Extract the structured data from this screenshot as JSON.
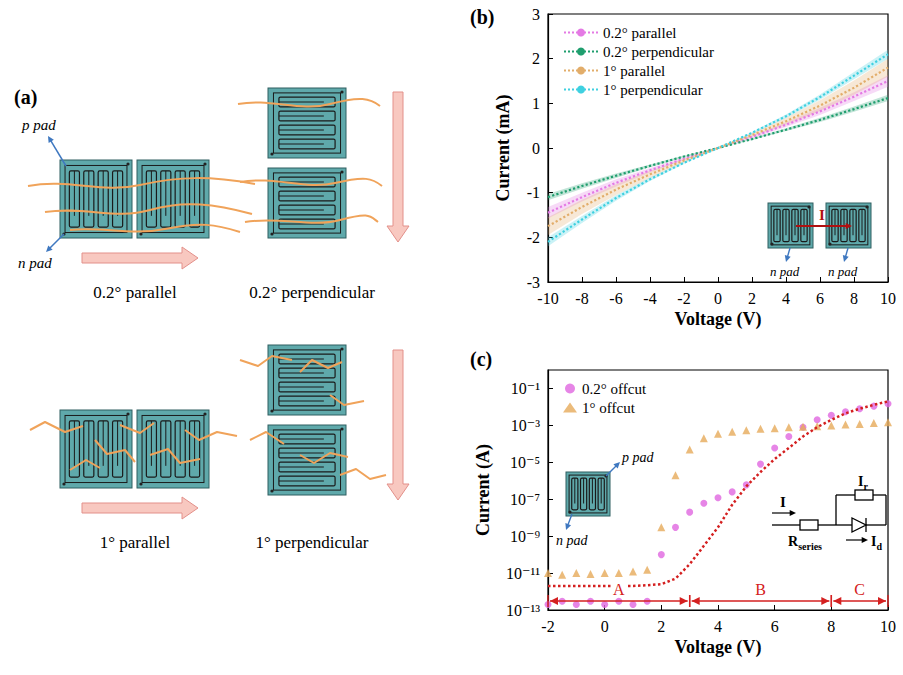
{
  "diagram": {
    "title": "(a)",
    "pad_labels": {
      "p": "p pad",
      "n": "n pad"
    },
    "captions": [
      "0.2° parallel",
      "0.2° perpendicular",
      "1° parallel",
      "1° perpendicular"
    ]
  },
  "chart_data": [
    {
      "type": "line",
      "title": "(b)",
      "x_label": "Voltage (V)",
      "y_label": "Current (mA)",
      "xlim": [
        -10,
        10
      ],
      "xticks": [
        -10,
        -8,
        -6,
        -4,
        -2,
        0,
        2,
        4,
        6,
        8,
        10
      ],
      "ylim": [
        -3,
        3
      ],
      "yticks": [
        -3,
        -2,
        -1,
        0,
        1,
        2,
        3
      ],
      "grid": false,
      "legend": "top-left",
      "line_style": "dotted",
      "x": [
        -10,
        -8,
        -6,
        -4,
        -2,
        0,
        2,
        4,
        6,
        8,
        10
      ],
      "series": [
        {
          "name": "0.2° parallel",
          "color": "#e47ae4",
          "values": [
            -1.45,
            -1.1,
            -0.78,
            -0.5,
            -0.24,
            0,
            0.25,
            0.52,
            0.82,
            1.15,
            1.5
          ],
          "error": [
            0.13,
            0.1,
            0.08,
            0.05,
            0.03,
            0,
            0.03,
            0.05,
            0.08,
            0.1,
            0.13
          ]
        },
        {
          "name": "0.2° perpendicular",
          "color": "#1f9e6e",
          "values": [
            -1.1,
            -0.85,
            -0.62,
            -0.4,
            -0.19,
            0,
            0.2,
            0.41,
            0.63,
            0.87,
            1.12
          ],
          "error": [
            0.07,
            0.06,
            0.05,
            0.03,
            0.02,
            0,
            0.02,
            0.03,
            0.05,
            0.06,
            0.07
          ]
        },
        {
          "name": "1° parallel",
          "color": "#e2ad6a",
          "values": [
            -1.75,
            -1.32,
            -0.93,
            -0.59,
            -0.28,
            0,
            0.29,
            0.6,
            0.95,
            1.35,
            1.8
          ],
          "error": [
            0.2,
            0.16,
            0.12,
            0.08,
            0.04,
            0,
            0.04,
            0.08,
            0.12,
            0.16,
            0.2
          ]
        },
        {
          "name": "1° perpendicular",
          "color": "#3fd0e0",
          "values": [
            -2.1,
            -1.6,
            -1.12,
            -0.7,
            -0.33,
            0,
            0.34,
            0.71,
            1.14,
            1.62,
            2.1
          ],
          "error": [
            0.1,
            0.08,
            0.06,
            0.04,
            0.02,
            0,
            0.02,
            0.04,
            0.06,
            0.08,
            0.1
          ]
        }
      ],
      "inset": {
        "labels": [
          "n pad",
          "n pad"
        ],
        "current": "I"
      }
    },
    {
      "type": "scatter",
      "title": "(c)",
      "x_label": "Voltage (V)",
      "y_label": "Current (A)",
      "log": "y",
      "grid": false,
      "legend": "top-left",
      "xlim": [
        -2,
        10
      ],
      "xticks": [
        -2,
        0,
        2,
        4,
        6,
        8,
        10
      ],
      "ylim": [
        1e-13,
        1
      ],
      "yticks": [
        {
          "value": 1e-13,
          "label": "10⁻¹³"
        },
        {
          "value": 1e-11,
          "label": "10⁻¹¹"
        },
        {
          "value": 1e-09,
          "label": "10⁻⁹"
        },
        {
          "value": 1e-07,
          "label": "10⁻⁷"
        },
        {
          "value": 1e-05,
          "label": "10⁻⁵"
        },
        {
          "value": 0.001,
          "label": "10⁻³"
        },
        {
          "value": 0.1,
          "label": "10⁻¹"
        }
      ],
      "x": [
        -2,
        -1.5,
        -1,
        -0.5,
        0,
        0.5,
        1,
        1.5,
        2,
        2.5,
        3,
        3.5,
        4,
        4.5,
        5,
        5.5,
        6,
        6.5,
        7,
        7.5,
        8,
        8.5,
        9,
        9.5,
        10
      ],
      "series": [
        {
          "name": "0.2° offcut",
          "color": "#e066e0",
          "marker": "circle",
          "values": [
            2e-13,
            3e-13,
            2e-13,
            3e-13,
            2e-13,
            3e-13,
            2e-13,
            3e-13,
            1e-10,
            3e-09,
            2e-08,
            6e-08,
            1.2e-07,
            2.5e-07,
            6e-07,
            8e-06,
            6e-05,
            0.00025,
            0.0008,
            0.002,
            0.0035,
            0.0055,
            0.008,
            0.011,
            0.015
          ]
        },
        {
          "name": "1° offcut",
          "color": "#e6aa5a",
          "marker": "triangle",
          "values": [
            1e-11,
            8e-12,
            1e-11,
            9e-12,
            1e-11,
            1e-11,
            1.2e-11,
            1.5e-11,
            3e-09,
            2e-06,
            5e-05,
            0.0002,
            0.00035,
            0.00045,
            0.00055,
            0.00065,
            0.0007,
            0.0008,
            0.00085,
            0.0009,
            0.001,
            0.0011,
            0.0012,
            0.00135,
            0.0015
          ]
        },
        {
          "type": "line",
          "line_style": "dotted",
          "color": "#d42020",
          "values": [
            2e-12,
            2e-12,
            2e-12,
            2e-12,
            2e-12,
            2e-12,
            2e-12,
            2.2e-12,
            2.5e-12,
            5e-12,
            3e-11,
            3e-10,
            3e-09,
            5e-08,
            5e-07,
            3e-06,
            1.5e-05,
            6e-05,
            0.00025,
            0.0008,
            0.002,
            0.0045,
            0.008,
            0.013,
            0.02
          ]
        }
      ],
      "regions": [
        {
          "label": "A",
          "range": [
            -2,
            3
          ]
        },
        {
          "label": "B",
          "range": [
            3,
            8
          ]
        },
        {
          "label": "C",
          "range": [
            8,
            10
          ]
        }
      ],
      "inset": {
        "labels": [
          "p pad",
          "n pad"
        ],
        "circuit": {
          "current": {
            "text": "I"
          },
          "branch_current": {
            "text": "I",
            "subscript": "r"
          },
          "resistor": {
            "text": "R",
            "subscript": "series"
          },
          "diode_current": {
            "text": "I",
            "subscript": "d"
          }
        }
      }
    }
  ]
}
